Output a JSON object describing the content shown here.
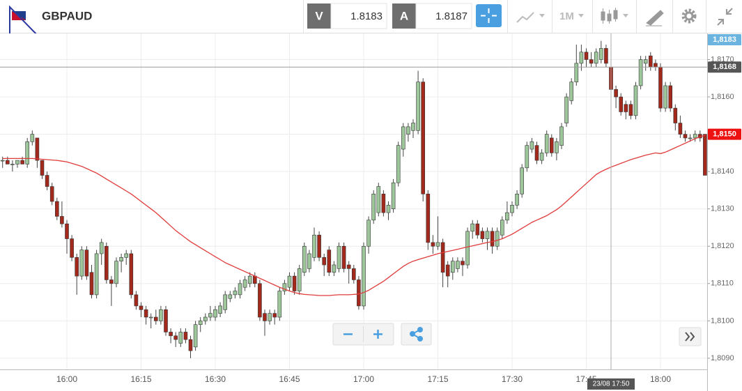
{
  "toolbar": {
    "symbol": "GBPAUD",
    "bid_label": "V",
    "bid": "1.8183",
    "ask_label": "A",
    "ask": "1.8187",
    "timeframe": "1M"
  },
  "chart_data": {
    "type": "candlestick",
    "categories": [
      null,
      null,
      null,
      null,
      null,
      null,
      null,
      null,
      null,
      null,
      null,
      null,
      null,
      "16:00",
      null,
      null,
      null,
      null,
      null,
      null,
      null,
      null,
      null,
      null,
      null,
      null,
      null,
      null,
      "16:15",
      null,
      null,
      null,
      null,
      null,
      null,
      null,
      null,
      null,
      null,
      null,
      null,
      null,
      null,
      "16:30",
      null,
      null,
      null,
      null,
      null,
      null,
      null,
      null,
      null,
      null,
      null,
      null,
      null,
      null,
      "16:45",
      null,
      null,
      null,
      null,
      null,
      null,
      null,
      null,
      null,
      null,
      null,
      null,
      null,
      null,
      "17:00",
      null,
      null,
      null,
      null,
      null,
      null,
      null,
      null,
      null,
      null,
      null,
      null,
      null,
      null,
      "17:15",
      null,
      null,
      null,
      null,
      null,
      null,
      null,
      null,
      null,
      null,
      null,
      null,
      null,
      null,
      "17:30",
      null,
      null,
      null,
      null,
      null,
      null,
      null,
      null,
      null,
      null,
      null,
      null,
      null,
      null,
      "17:45",
      null,
      null,
      null,
      null,
      null,
      null,
      null,
      null,
      null,
      null,
      null,
      null,
      null,
      null,
      "18:00",
      null,
      null,
      null,
      null,
      null,
      null,
      null,
      null,
      null
    ],
    "open": [
      1.8143,
      1.8143,
      1.8142,
      1.8142,
      1.8143,
      1.8142,
      1.8148,
      1.8149,
      1.8143,
      1.8139,
      1.8136,
      1.8132,
      1.8128,
      1.8126,
      1.8122,
      1.8117,
      1.8112,
      1.8119,
      1.8113,
      1.8107,
      1.8118,
      1.812,
      1.8111,
      1.811,
      1.8116,
      1.8117,
      1.8118,
      1.8107,
      1.8104,
      1.8103,
      1.8101,
      1.8101,
      1.81,
      1.8103,
      1.8097,
      1.8096,
      1.8094,
      1.8097,
      1.8095,
      1.8093,
      1.8099,
      1.81,
      1.8101,
      1.8101,
      1.8102,
      1.8103,
      1.8106,
      1.8107,
      1.8107,
      1.8109,
      1.811,
      1.8112,
      1.811,
      1.8102,
      1.81,
      1.8102,
      1.8101,
      1.8108,
      1.8109,
      1.8112,
      1.8108,
      1.8113,
      1.8114,
      1.8117,
      1.8123,
      1.8117,
      1.8119,
      1.8113,
      1.8114,
      1.812,
      1.8115,
      1.8114,
      1.8111,
      1.8104,
      1.812,
      1.8127,
      1.8129,
      1.8134,
      1.8129,
      1.813,
      1.8137,
      1.8146,
      1.815,
      1.8151,
      1.8151,
      1.8164,
      1.8134,
      1.8121,
      1.812,
      1.8121,
      1.8115,
      1.8113,
      1.8114,
      1.8116,
      1.8115,
      1.8124,
      1.8126,
      1.8124,
      1.8122,
      1.8124,
      1.812,
      1.8123,
      1.8127,
      1.8129,
      1.8131,
      1.8134,
      1.8141,
      1.8146,
      1.8147,
      1.8143,
      1.8145,
      1.8149,
      1.8145,
      1.8147,
      1.8153,
      1.8159,
      1.8164,
      1.8169,
      1.8172,
      1.817,
      1.8169,
      1.817,
      1.8173,
      1.8168,
      1.8162,
      1.816,
      1.8158,
      1.8158,
      1.8155,
      1.8163,
      1.8169,
      1.8171,
      1.8169,
      1.8168,
      1.8157,
      1.8163,
      1.8157,
      1.8153,
      1.815,
      1.8149,
      1.8149,
      1.815,
      1.815
    ],
    "high": [
      1.8144,
      1.8144,
      1.8143,
      1.8143,
      1.8144,
      1.8149,
      1.8151,
      1.8149,
      1.8143,
      1.814,
      1.8137,
      1.8133,
      1.8132,
      1.8127,
      1.8123,
      1.8118,
      1.812,
      1.812,
      1.8115,
      1.8119,
      1.8122,
      1.8121,
      1.8112,
      1.8117,
      1.8118,
      1.8119,
      1.8119,
      1.8108,
      1.8105,
      1.8104,
      1.8102,
      1.8103,
      1.8104,
      1.8104,
      1.8098,
      1.8097,
      1.8098,
      1.8098,
      1.8096,
      1.81,
      1.8101,
      1.8102,
      1.8104,
      1.8104,
      1.8105,
      1.8108,
      1.8108,
      1.8109,
      1.8111,
      1.8112,
      1.8113,
      1.8113,
      1.8111,
      1.8103,
      1.8103,
      1.8103,
      1.8109,
      1.8111,
      1.8113,
      1.8113,
      1.8115,
      1.8121,
      1.8119,
      1.8125,
      1.8124,
      1.8118,
      1.812,
      1.8116,
      1.8121,
      1.8121,
      1.8116,
      1.8115,
      1.8112,
      1.8121,
      1.8128,
      1.8135,
      1.8137,
      1.8135,
      1.8132,
      1.8138,
      1.8148,
      1.8153,
      1.8153,
      1.8154,
      1.8167,
      1.8165,
      1.8135,
      1.8123,
      1.8128,
      1.8122,
      1.8116,
      1.8117,
      1.8117,
      1.8117,
      1.8125,
      1.8127,
      1.8127,
      1.8125,
      1.8125,
      1.8125,
      1.8125,
      1.8128,
      1.8132,
      1.8132,
      1.8135,
      1.8142,
      1.8148,
      1.8149,
      1.8148,
      1.8146,
      1.8151,
      1.815,
      1.8149,
      1.8153,
      1.8161,
      1.8165,
      1.8174,
      1.8174,
      1.8173,
      1.8172,
      1.8173,
      1.8175,
      1.8174,
      1.8169,
      1.8163,
      1.8161,
      1.8159,
      1.8159,
      1.8164,
      1.8171,
      1.8171,
      1.8172,
      1.817,
      1.8169,
      1.8164,
      1.8164,
      1.8158,
      1.8155,
      1.8151,
      1.815,
      1.8151,
      1.8151,
      1.815
    ],
    "low": [
      1.8141,
      1.8142,
      1.814,
      1.8141,
      1.8142,
      1.8141,
      1.8147,
      1.8141,
      1.8138,
      1.8135,
      1.8131,
      1.8127,
      1.8125,
      1.8118,
      1.8116,
      1.8107,
      1.8111,
      1.8111,
      1.8106,
      1.8106,
      1.8115,
      1.811,
      1.8104,
      1.8109,
      1.8113,
      1.8115,
      1.8106,
      1.8103,
      1.8101,
      1.8099,
      1.8098,
      1.8099,
      1.8099,
      1.8096,
      1.8094,
      1.8093,
      1.8093,
      1.8094,
      1.809,
      1.8092,
      1.8097,
      1.8099,
      1.81,
      1.81,
      1.8101,
      1.8102,
      1.8105,
      1.8106,
      1.8106,
      1.8108,
      1.8109,
      1.8109,
      1.81,
      1.8096,
      1.8099,
      1.8099,
      1.81,
      1.8107,
      1.8108,
      1.8107,
      1.8107,
      1.8112,
      1.8113,
      1.8116,
      1.8116,
      1.8112,
      1.8112,
      1.8112,
      1.8113,
      1.8113,
      1.811,
      1.811,
      1.8103,
      1.8103,
      1.8118,
      1.8126,
      1.8128,
      1.8128,
      1.8127,
      1.8129,
      1.8136,
      1.8144,
      1.8148,
      1.8149,
      1.815,
      1.8132,
      1.8119,
      1.8118,
      1.8119,
      1.8109,
      1.8109,
      1.8111,
      1.8113,
      1.8112,
      1.8114,
      1.8122,
      1.8122,
      1.8121,
      1.8119,
      1.8118,
      1.8119,
      1.8122,
      1.8126,
      1.8128,
      1.813,
      1.8133,
      1.814,
      1.8145,
      1.8142,
      1.8142,
      1.8144,
      1.8144,
      1.8143,
      1.8146,
      1.8152,
      1.8158,
      1.8163,
      1.8167,
      1.8168,
      1.8168,
      1.8168,
      1.8169,
      1.8168,
      1.8161,
      1.8157,
      1.8155,
      1.8154,
      1.8154,
      1.8154,
      1.8162,
      1.8167,
      1.8167,
      1.8167,
      1.8156,
      1.8156,
      1.8156,
      1.8151,
      1.8149,
      1.8148,
      1.8148,
      1.8148,
      1.8148,
      1.8139
    ],
    "close": [
      1.8143,
      1.8142,
      1.8142,
      1.8143,
      1.8142,
      1.8148,
      1.815,
      1.8143,
      1.8139,
      1.8136,
      1.8132,
      1.8128,
      1.8126,
      1.8122,
      1.8117,
      1.8112,
      1.8119,
      1.8112,
      1.8107,
      1.8118,
      1.8121,
      1.8111,
      1.811,
      1.8116,
      1.8117,
      1.8118,
      1.8107,
      1.8104,
      1.8103,
      1.8101,
      1.8101,
      1.81,
      1.8103,
      1.8097,
      1.8096,
      1.8095,
      1.8097,
      1.8095,
      1.8092,
      1.8099,
      1.81,
      1.8101,
      1.8102,
      1.8103,
      1.8104,
      1.8107,
      1.8107,
      1.8108,
      1.811,
      1.8111,
      1.8112,
      1.811,
      1.8101,
      1.81,
      1.8102,
      1.8101,
      1.8108,
      1.811,
      1.8112,
      1.8108,
      1.8114,
      1.812,
      1.8118,
      1.8123,
      1.8117,
      1.8115,
      1.8113,
      1.8115,
      1.812,
      1.8114,
      1.8114,
      1.8111,
      1.8104,
      1.812,
      1.8127,
      1.8134,
      1.8136,
      1.8129,
      1.8131,
      1.8137,
      1.8147,
      1.8152,
      1.8152,
      1.8153,
      1.8164,
      1.8134,
      1.8121,
      1.812,
      1.8121,
      1.8113,
      1.8112,
      1.8116,
      1.8116,
      1.8115,
      1.8124,
      1.8126,
      1.8123,
      1.8122,
      1.8124,
      1.812,
      1.8124,
      1.8127,
      1.8129,
      1.8131,
      1.8134,
      1.8141,
      1.8147,
      1.8148,
      1.8143,
      1.8145,
      1.815,
      1.8145,
      1.8148,
      1.8152,
      1.816,
      1.8164,
      1.8169,
      1.8172,
      1.817,
      1.8169,
      1.8172,
      1.8173,
      1.8169,
      1.8162,
      1.816,
      1.8156,
      1.8156,
      1.8155,
      1.8163,
      1.817,
      1.817,
      1.8168,
      1.8168,
      1.8157,
      1.8163,
      1.8157,
      1.8153,
      1.815,
      1.8149,
      1.8149,
      1.815,
      1.8149,
      1.8139
    ],
    "up_color": "#9dc79b",
    "down_color": "#a3291c",
    "overlay_line": {
      "color": "#e03a3a",
      "values": [
        1.81435,
        1.81435,
        1.81435,
        1.81435,
        1.81435,
        1.81435,
        1.81435,
        1.81434,
        1.81433,
        1.81432,
        1.81431,
        1.8143,
        1.81428,
        1.81426,
        1.81422,
        1.81418,
        1.81414,
        1.81408,
        1.81402,
        1.81396,
        1.81388,
        1.8138,
        1.81372,
        1.81364,
        1.81356,
        1.81348,
        1.8134,
        1.8133,
        1.8132,
        1.8131,
        1.813,
        1.8129,
        1.81278,
        1.81266,
        1.81254,
        1.81242,
        1.81232,
        1.81222,
        1.81212,
        1.81204,
        1.81196,
        1.81188,
        1.8118,
        1.81172,
        1.81164,
        1.81156,
        1.8115,
        1.81144,
        1.81138,
        1.81132,
        1.81126,
        1.8112,
        1.81114,
        1.81108,
        1.81102,
        1.81096,
        1.8109,
        1.81085,
        1.8108,
        1.81076,
        1.81073,
        1.81071,
        1.8107,
        1.81069,
        1.81068,
        1.81068,
        1.81068,
        1.81069,
        1.8107,
        1.8107,
        1.8107,
        1.81071,
        1.81072,
        1.81076,
        1.81082,
        1.8109,
        1.81098,
        1.81106,
        1.81116,
        1.81126,
        1.81136,
        1.81146,
        1.81154,
        1.8116,
        1.81164,
        1.81168,
        1.81172,
        1.81176,
        1.8118,
        1.81183,
        1.81186,
        1.81189,
        1.81192,
        1.81195,
        1.81198,
        1.81201,
        1.81204,
        1.81207,
        1.8121,
        1.81212,
        1.81216,
        1.8122,
        1.81226,
        1.81232,
        1.8124,
        1.81248,
        1.81256,
        1.81264,
        1.8127,
        1.81276,
        1.81282,
        1.8129,
        1.81298,
        1.81308,
        1.8132,
        1.81332,
        1.81344,
        1.81356,
        1.81368,
        1.8138,
        1.81392,
        1.814,
        1.81406,
        1.81412,
        1.81417,
        1.81422,
        1.81427,
        1.81432,
        1.81436,
        1.8144,
        1.81444,
        1.81447,
        1.8145,
        1.81448,
        1.81452,
        1.81458,
        1.81464,
        1.8147,
        1.81476,
        1.81482,
        1.81488,
        1.81493,
        1.81497
      ]
    },
    "ylim": [
      1.8087,
      1.8177
    ],
    "yticks": [
      {
        "value": 1.809,
        "label": "1,8090"
      },
      {
        "value": 1.81,
        "label": "1,8100"
      },
      {
        "value": 1.811,
        "label": "1,8110"
      },
      {
        "value": 1.812,
        "label": "1,8120"
      },
      {
        "value": 1.813,
        "label": "1,8130"
      },
      {
        "value": 1.814,
        "label": "1,8140"
      },
      {
        "value": 1.815,
        "label": "1,8150"
      },
      {
        "value": 1.816,
        "label": "1,8160"
      },
      {
        "value": 1.817,
        "label": "1,8170"
      }
    ],
    "grid": true,
    "price_labels": [
      {
        "value": 1.8183,
        "label": "1,8183",
        "color": "#6cb4e0"
      },
      {
        "value": 1.815,
        "label": "1,8150",
        "color": "#ee1111"
      }
    ],
    "crosshair": {
      "value": 1.8168,
      "label": "1,8168",
      "time_label": "23/08 17:50",
      "color": "#555555"
    }
  }
}
